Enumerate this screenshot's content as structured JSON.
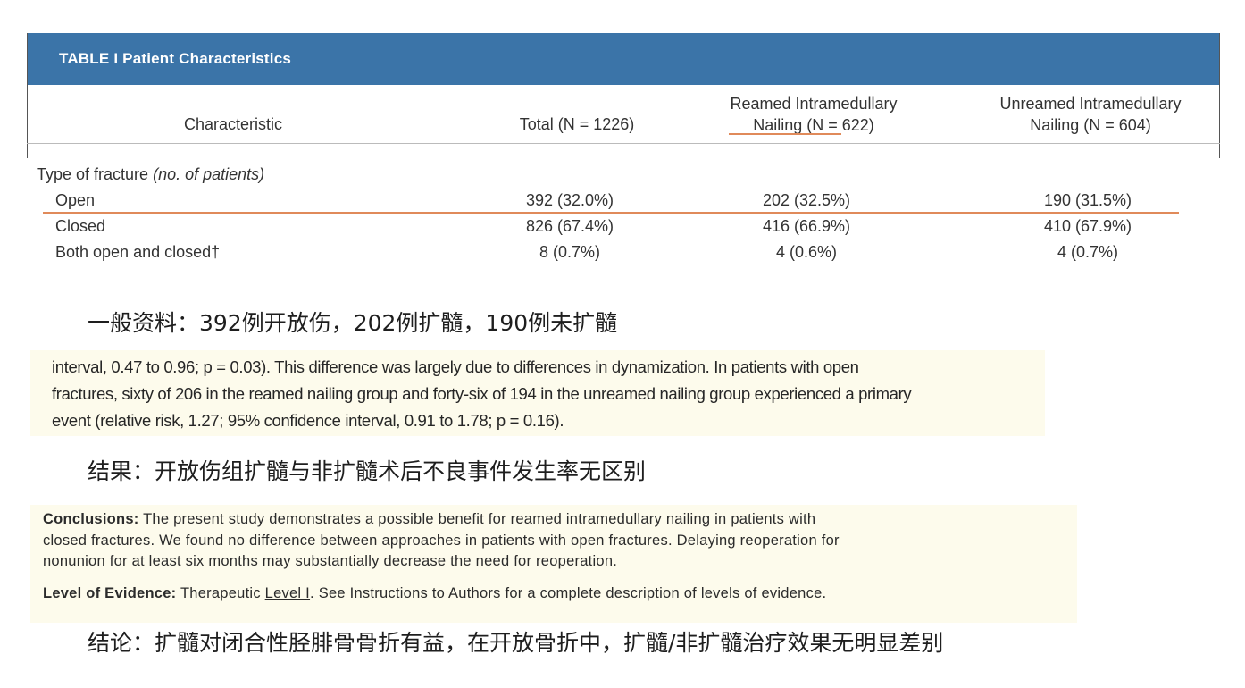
{
  "table": {
    "title": "TABLE I Patient Characteristics",
    "columns": {
      "characteristic": "Characteristic",
      "total": "Total (N = 1226)",
      "reamed_line1": "Reamed Intramedullary",
      "reamed_line2": "Nailing (N = 622)",
      "unreamed_line1": "Unreamed Intramedullary",
      "unreamed_line2": "Nailing (N = 604)"
    },
    "section_label": "Type of fracture",
    "section_label_italic": "(no. of patients)",
    "rows": [
      {
        "label": "Open",
        "total": "392 (32.0%)",
        "reamed": "202 (32.5%)",
        "unreamed": "190 (31.5%)"
      },
      {
        "label": "Closed",
        "total": "826 (67.4%)",
        "reamed": "416 (66.9%)",
        "unreamed": "410 (67.9%)"
      },
      {
        "label": "Both open and closed†",
        "total": "8 (0.7%)",
        "reamed": "4 (0.6%)",
        "unreamed": "4 (0.7%)"
      }
    ]
  },
  "notes": {
    "general": "一般资料：392例开放伤，202例扩髓，190例未扩髓",
    "results": "结果：开放伤组扩髓与非扩髓术后不良事件发生率无区别",
    "conclusion": "结论：扩髓对闭合性胫腓骨骨折有益，在开放骨折中，扩髓/非扩髓治疗效果无明显差别"
  },
  "excerpt_results": {
    "line1": "interval, 0.47 to 0.96; p = 0.03). This difference was largely due to differences in dynamization. In patients with open",
    "line2": "fractures, sixty of 206 in the reamed nailing group and forty-six of 194 in the unreamed nailing group experienced a primary",
    "line3": "event (relative risk, 1.27; 95% confidence interval, 0.91 to 1.78; p = 0.16)."
  },
  "excerpt_conclusions": {
    "label": "Conclusions:",
    "line1": "The present study demonstrates a possible benefit for reamed intramedullary nailing in patients with",
    "line2": "closed fractures. We found no difference between approaches in patients with open fractures. Delaying reoperation for",
    "line3": "nonunion for at least six months may substantially decrease the need for reoperation.",
    "evidence_label": "Level of Evidence:",
    "evidence_pre": "Therapeutic ",
    "evidence_link": "Level I",
    "evidence_post": ". See Instructions to Authors for a complete description of levels of evidence."
  },
  "colors": {
    "header_bg": "#3b74a8",
    "highlight_line": "#e08a5a",
    "excerpt_bg": "#fdfbec"
  }
}
